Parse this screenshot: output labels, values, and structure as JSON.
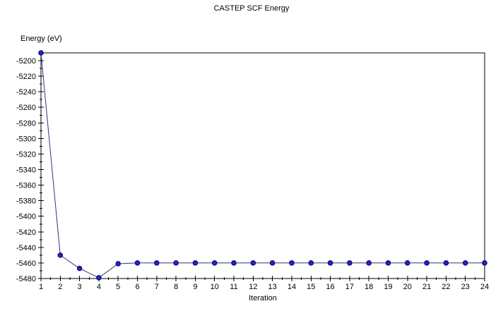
{
  "chart_data": {
    "type": "line",
    "title": "CASTEP SCF Energy",
    "xlabel": "Iteration",
    "ylabel": "Energy (eV)",
    "x": [
      1,
      2,
      3,
      4,
      5,
      6,
      7,
      8,
      9,
      10,
      11,
      12,
      13,
      14,
      15,
      16,
      17,
      18,
      19,
      20,
      21,
      22,
      23,
      24
    ],
    "y": [
      -5190,
      -5450,
      -5467,
      -5479,
      -5461,
      -5460,
      -5460,
      -5460,
      -5460,
      -5460,
      -5460,
      -5460,
      -5460,
      -5460,
      -5460,
      -5460,
      -5460,
      -5460,
      -5460,
      -5460,
      -5460,
      -5460,
      -5460,
      -5460
    ],
    "xlim": [
      1,
      24
    ],
    "ylim": [
      -5480,
      -5190
    ],
    "xticks": [
      1,
      2,
      3,
      4,
      5,
      6,
      7,
      8,
      9,
      10,
      11,
      12,
      13,
      14,
      15,
      16,
      17,
      18,
      19,
      20,
      21,
      22,
      23,
      24
    ],
    "yticks": [
      -5200,
      -5220,
      -5240,
      -5260,
      -5280,
      -5300,
      -5320,
      -5340,
      -5360,
      -5380,
      -5400,
      -5420,
      -5440,
      -5460,
      -5480
    ],
    "x_minor_step": 0.5,
    "y_minor_step": 10,
    "grid": false,
    "legend": null,
    "line_color": "#333377",
    "marker": "circle",
    "marker_size": 6.5,
    "marker_color": "#2222cc",
    "marker_edge_color": "#000066",
    "axis_color": "#000000",
    "background_color": "#ffffff"
  }
}
